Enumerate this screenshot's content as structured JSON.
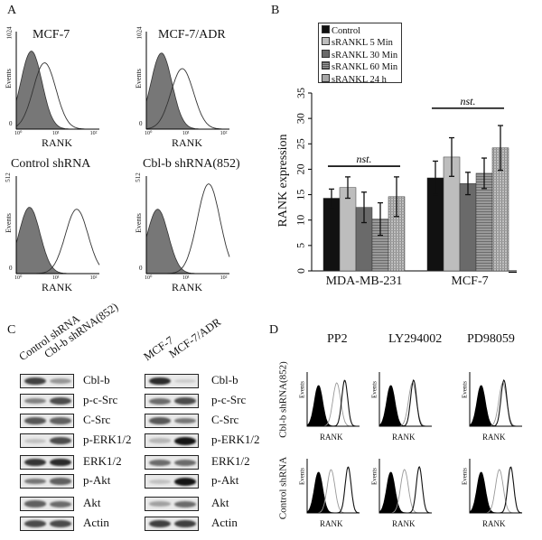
{
  "panels": {
    "a": "A",
    "b": "B",
    "c": "C",
    "d": "D"
  },
  "panel_a": {
    "x_label": "RANK",
    "y_label": "Events",
    "x_ticks": [
      "10⁰",
      "10¹",
      "10²"
    ],
    "plots": [
      {
        "title": "MCF-7",
        "y_max": "1024",
        "y_min": "0",
        "isotype_peak_log": 0.4,
        "isotype_height": 0.8,
        "rank_peak_log": 0.75,
        "rank_height": 0.68
      },
      {
        "title": "MCF-7/ADR",
        "y_max": "1024",
        "y_min": "0",
        "isotype_peak_log": 0.4,
        "isotype_height": 0.78,
        "rank_peak_log": 0.95,
        "rank_height": 0.62
      },
      {
        "title": "Control shRNA",
        "y_max": "512",
        "y_min": "0",
        "isotype_peak_log": 0.35,
        "isotype_height": 0.68,
        "rank_peak_log": 1.6,
        "rank_height": 0.66
      },
      {
        "title": "Cbl-b shRNA(852)",
        "y_max": "512",
        "y_min": "0",
        "isotype_peak_log": 0.3,
        "isotype_height": 0.66,
        "rank_peak_log": 1.65,
        "rank_height": 0.92
      }
    ]
  },
  "chart_data": {
    "type": "bar",
    "ylabel": "RANK expression",
    "ylim": [
      0,
      35
    ],
    "yticks": [
      "0",
      "5",
      "10",
      "15",
      "20",
      "25",
      "30",
      "35"
    ],
    "categories": [
      "MDA-MB-231",
      "MCF-7"
    ],
    "legend_position": "top-left",
    "series": [
      {
        "name": "Control",
        "values": [
          14.3,
          18.3
        ],
        "errors": [
          1.8,
          3.3
        ],
        "color": "#111111"
      },
      {
        "name": "sRANKL 5 Min",
        "values": [
          16.4,
          22.4
        ],
        "errors": [
          2.1,
          3.8
        ],
        "color": "#bdbdbd"
      },
      {
        "name": "sRANKL 30 Min",
        "values": [
          12.5,
          17.2
        ],
        "errors": [
          3.0,
          2.2
        ],
        "color": "#6a6a6a"
      },
      {
        "name": "sRANKL 60 Min",
        "values": [
          10.2,
          19.2
        ],
        "errors": [
          3.2,
          3.0
        ],
        "color": "#8a8a8a"
      },
      {
        "name": "sRANKL 24 h",
        "values": [
          14.6,
          24.2
        ],
        "errors": [
          3.9,
          4.4
        ],
        "color": "#a8a8a8"
      }
    ],
    "annotations": [
      {
        "text": "nst.",
        "category": "MDA-MB-231",
        "y": 20.6
      },
      {
        "text": "nst.",
        "category": "MCF-7",
        "y": 32
      }
    ]
  },
  "panel_c": {
    "left": {
      "lanes": [
        "Control shRNA",
        "Cbl-b shRNA(852)"
      ],
      "rows": [
        {
          "label": "Cbl-b",
          "intensity": [
            0.8,
            0.4
          ]
        },
        {
          "label": "p-c-Src",
          "intensity": [
            0.5,
            0.75
          ]
        },
        {
          "label": "C-Src",
          "intensity": [
            0.7,
            0.65
          ]
        },
        {
          "label": "p-ERK1/2",
          "intensity": [
            0.2,
            0.75
          ]
        },
        {
          "label": "ERK1/2",
          "intensity": [
            0.85,
            0.9
          ]
        },
        {
          "label": "p-Akt",
          "intensity": [
            0.55,
            0.65
          ]
        },
        {
          "label": "Akt",
          "intensity": [
            0.65,
            0.6
          ]
        },
        {
          "label": "Actin",
          "intensity": [
            0.75,
            0.75
          ]
        }
      ]
    },
    "right": {
      "lanes": [
        "MCF-7",
        "MCF-7/ADR"
      ],
      "rows": [
        {
          "label": "Cbl-b",
          "intensity": [
            0.9,
            0.15
          ]
        },
        {
          "label": "p-c-Src",
          "intensity": [
            0.6,
            0.75
          ]
        },
        {
          "label": "C-Src",
          "intensity": [
            0.7,
            0.55
          ]
        },
        {
          "label": "p-ERK1/2",
          "intensity": [
            0.25,
            1.0
          ]
        },
        {
          "label": "ERK1/2",
          "intensity": [
            0.6,
            0.6
          ]
        },
        {
          "label": "p-Akt",
          "intensity": [
            0.2,
            1.0
          ]
        },
        {
          "label": "Akt",
          "intensity": [
            0.35,
            0.6
          ]
        },
        {
          "label": "Actin",
          "intensity": [
            0.8,
            0.8
          ]
        }
      ]
    }
  },
  "panel_d": {
    "columns": [
      "PP2",
      "LY294002",
      "PD98059"
    ],
    "rows": [
      "Cbl-b shRNA(852)",
      "Control shRNA"
    ],
    "x_label": "RANK",
    "y_label": "Events",
    "plots": [
      [
        {
          "iso": 0.5,
          "treated": 1.3,
          "untreated": 1.65
        },
        {
          "iso": 0.5,
          "treated": 1.45,
          "untreated": 1.5
        },
        {
          "iso": 0.5,
          "treated": 1.45,
          "untreated": 1.5
        }
      ],
      [
        {
          "iso": 0.5,
          "treated": 1.05,
          "untreated": 1.8
        },
        {
          "iso": 0.5,
          "treated": 1.1,
          "untreated": 1.75
        },
        {
          "iso": 0.5,
          "treated": 1.3,
          "untreated": 1.8
        }
      ]
    ]
  }
}
